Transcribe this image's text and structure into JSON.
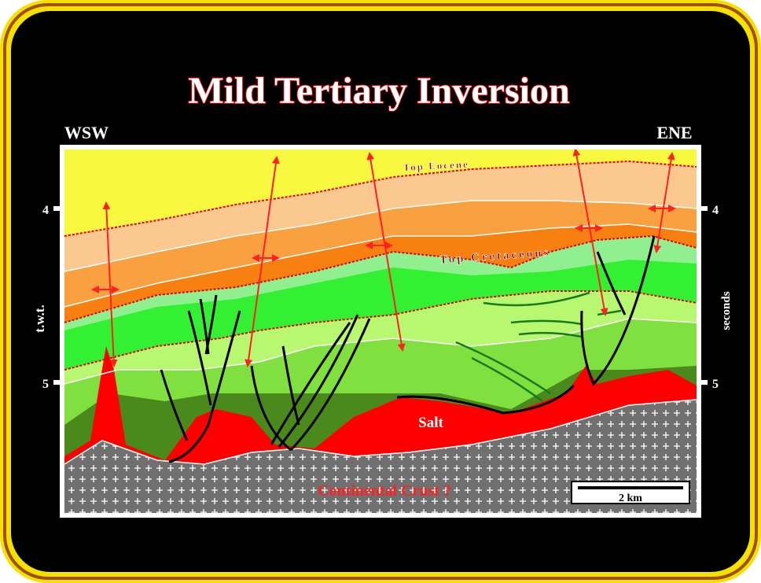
{
  "title": "Mild Tertiary Inversion",
  "orientation": {
    "left": "WSW",
    "right": "ENE"
  },
  "axis": {
    "left_label": "t.w.t.",
    "right_label": "seconds",
    "ticks": [
      "4",
      "5"
    ]
  },
  "horizons": {
    "top_eocene": "Top Eocene",
    "top_cretaceous": "Top Cretaceous"
  },
  "units": {
    "salt": "Salt",
    "crust": "Continental Crust ?"
  },
  "scale_bar": "2 km",
  "colors": {
    "frame": "#f5e000",
    "background": "#000000",
    "title_fill": "#ffffff",
    "title_stroke": "#e00000",
    "arrows": "#ff2020",
    "salt": "#ff0000",
    "crust": "#707070"
  }
}
